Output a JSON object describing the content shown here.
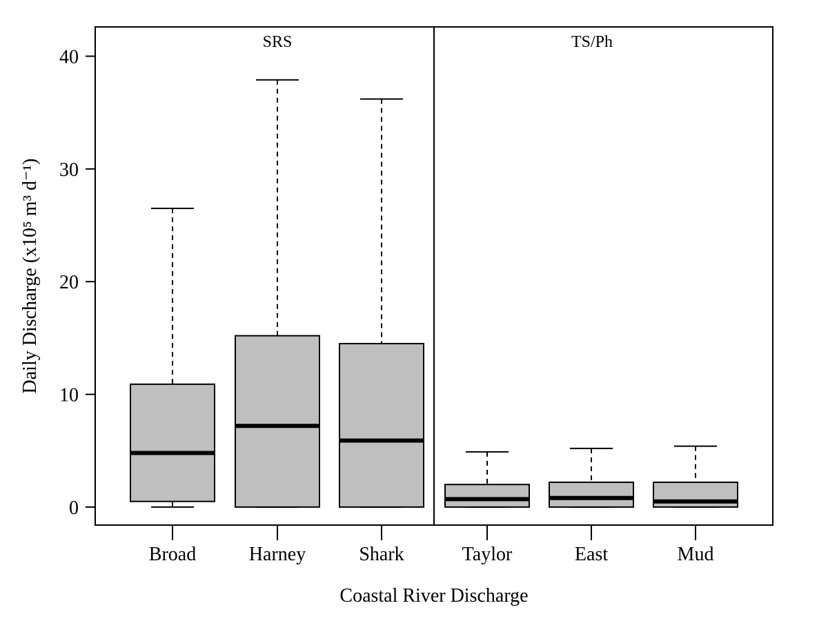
{
  "chart_data": {
    "type": "box",
    "xlabel": "Coastal River Discharge",
    "ylabel": "Daily Discharge (x10⁵ m³ d⁻¹)",
    "ylim": [
      -1.6,
      42.6
    ],
    "yticks": [
      0,
      10,
      20,
      30,
      40
    ],
    "grid": false,
    "panels": [
      {
        "label": "SRS",
        "categories": [
          "Broad",
          "Harney",
          "Shark"
        ]
      },
      {
        "label": "TS/Ph",
        "categories": [
          "Taylor",
          "East",
          "Mud"
        ]
      }
    ],
    "boxes": [
      {
        "category": "Broad",
        "whisker_low": 0.0,
        "q1": 0.5,
        "median": 4.8,
        "q3": 10.9,
        "whisker_high": 26.5
      },
      {
        "category": "Harney",
        "whisker_low": 0.0,
        "q1": 0.0,
        "median": 7.2,
        "q3": 15.2,
        "whisker_high": 37.9
      },
      {
        "category": "Shark",
        "whisker_low": 0.0,
        "q1": 0.0,
        "median": 5.9,
        "q3": 14.5,
        "whisker_high": 36.2
      },
      {
        "category": "Taylor",
        "whisker_low": 0.0,
        "q1": 0.0,
        "median": 0.7,
        "q3": 2.0,
        "whisker_high": 4.9
      },
      {
        "category": "East",
        "whisker_low": 0.0,
        "q1": 0.0,
        "median": 0.8,
        "q3": 2.2,
        "whisker_high": 5.2
      },
      {
        "category": "Mud",
        "whisker_low": 0.0,
        "q1": 0.0,
        "median": 0.5,
        "q3": 2.2,
        "whisker_high": 5.4
      }
    ],
    "colors": {
      "box_fill": "#bfbfbf",
      "stroke": "#000000"
    }
  }
}
